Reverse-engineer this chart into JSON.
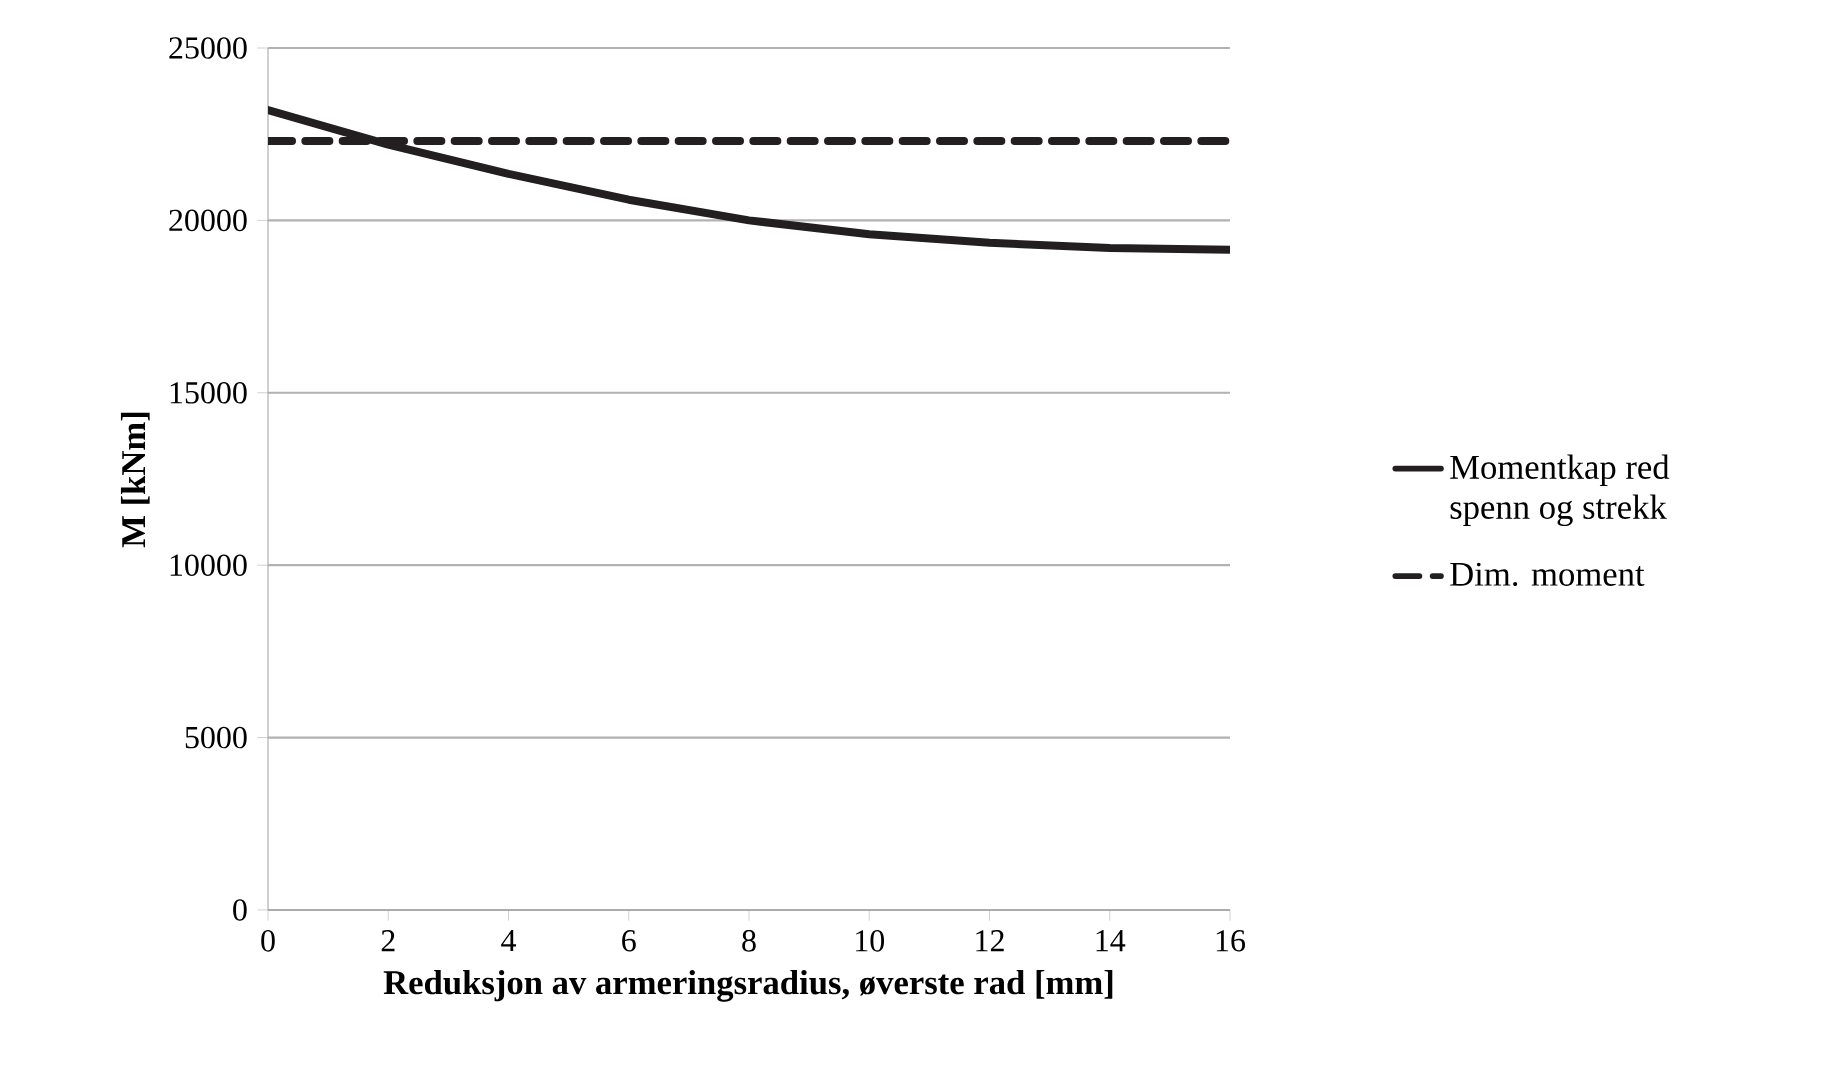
{
  "chart_data": {
    "type": "line",
    "xlabel": "Reduksjon av armeringsradius, øverste rad [mm]",
    "ylabel": "M [kNm]",
    "x": [
      0,
      2,
      4,
      6,
      8,
      10,
      12,
      14,
      16
    ],
    "series": [
      {
        "name": "Momentkap red spenn og strekk",
        "color": "#231f20",
        "line_style": "solid",
        "values": [
          23200,
          22200,
          21350,
          20600,
          20000,
          19600,
          19350,
          19200,
          19150
        ]
      },
      {
        "name": "Dim. moment",
        "color": "#231f20",
        "line_style": "dashed",
        "values": [
          22300,
          22300,
          22300,
          22300,
          22300,
          22300,
          22300,
          22300,
          22300
        ]
      }
    ],
    "xlim": [
      0,
      16
    ],
    "xticks": [
      0,
      2,
      4,
      6,
      8,
      10,
      12,
      14,
      16
    ],
    "ylim": [
      0,
      25000
    ],
    "yticks": [
      0,
      5000,
      10000,
      15000,
      20000,
      25000
    ],
    "grid": "y",
    "legend": "right",
    "marker": "none"
  }
}
